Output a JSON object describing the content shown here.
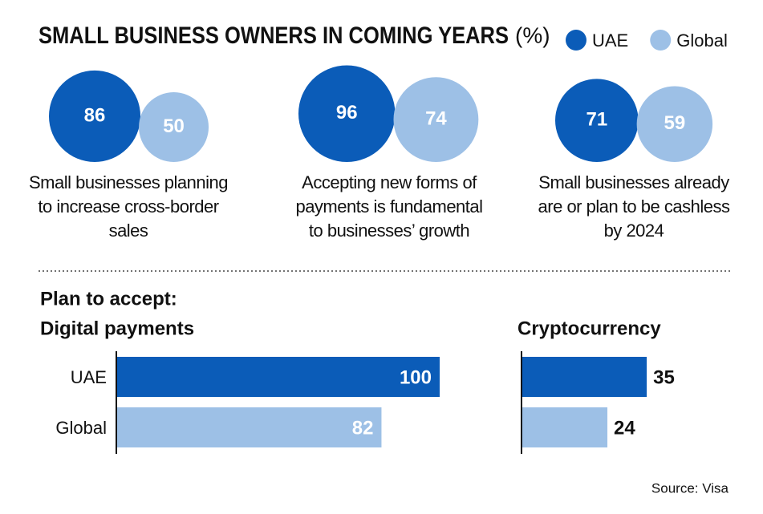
{
  "title": "SMALL BUSINESS OWNERS IN COMING YEARS",
  "unit": "(%)",
  "subtitle": "Plan to accept:",
  "source": "Source: Visa",
  "chart_data": [
    {
      "type": "bubble",
      "categories": [
        "Small businesses planning to increase cross-border sales",
        "Accepting new forms of payments is fundamental to businesses’ growth",
        "Small businesses already are or plan to be cashless by 2024"
      ],
      "series": [
        {
          "name": "UAE",
          "color": "#0b5cb8",
          "values": [
            86,
            96,
            71
          ]
        },
        {
          "name": "Global",
          "color": "#9dc0e6",
          "values": [
            50,
            74,
            59
          ]
        }
      ]
    },
    {
      "type": "bar",
      "title": "Digital payments",
      "categories": [
        "UAE",
        "Global"
      ],
      "values": [
        100,
        82
      ],
      "colors": [
        "#0b5cb8",
        "#9dc0e6"
      ]
    },
    {
      "type": "bar",
      "title": "Cryptocurrency",
      "values": [
        35,
        24
      ],
      "colors": [
        "#0b5cb8",
        "#9dc0e6"
      ]
    }
  ]
}
